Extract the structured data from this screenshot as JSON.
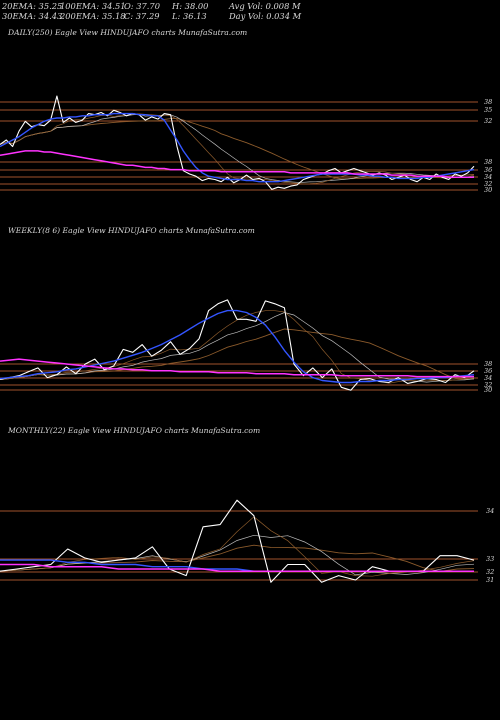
{
  "header": {
    "ema20": "20EMA: 35.25",
    "ema100": "100EMA: 34.51",
    "open": "O: 37.70",
    "high": "H: 38.00",
    "avgvol": "Avg Vol: 0.008  M",
    "ema30": "30EMA: 34.43",
    "ema200": "200EMA: 35.18",
    "close": "C: 37.29",
    "low": "L: 36.13",
    "dayvol": "Day Vol: 0.034  M"
  },
  "panels": {
    "daily": {
      "label": "DAILY(250) Eagle  View  HINDUJAFO charts MunafaSutra.com"
    },
    "weekly": {
      "label": "WEEKLY(8          6) Eagle  View  HINDUJAFO charts MunafaSutra.com"
    },
    "monthly": {
      "label": "MONTHLY(22) Eagle  View  HINDUJAFO charts MunafaSutra.com"
    }
  },
  "colors": {
    "background": "#000000",
    "price": "#ffffff",
    "ema_fast": "#3355ff",
    "ema_slow": "#ff33ff",
    "level_line": "#a0522d",
    "ma_brown": "#8b5a2b",
    "ma_grey": "#bbbbbb"
  },
  "chart_data": [
    {
      "type": "line",
      "name": "daily",
      "ylim": [
        29.5,
        38.6
      ],
      "level_ticks": [
        38,
        35,
        32,
        38,
        36,
        34,
        32,
        30
      ],
      "series": [
        {
          "role": "price",
          "values": [
            34.2,
            34.6,
            34.0,
            35.4,
            36.3,
            35.8,
            36.0,
            35.9,
            36.4,
            38.6,
            36.2,
            36.6,
            36.2,
            36.4,
            37.0,
            36.9,
            37.1,
            36.8,
            37.3,
            37.1,
            36.8,
            37.0,
            36.9,
            36.4,
            36.7,
            36.5,
            37.0,
            36.9,
            34.0,
            31.8,
            31.5,
            31.3,
            30.9,
            31.1,
            31.0,
            30.8,
            31.2,
            30.7,
            31.0,
            31.4,
            31.0,
            31.1,
            30.8,
            30.1,
            30.3,
            30.2,
            30.4,
            30.5,
            31.0,
            31.2,
            31.4,
            31.5,
            31.8,
            32.0,
            31.6,
            31.8,
            32.0,
            31.8,
            31.6,
            31.4,
            31.6,
            31.4,
            31.0,
            31.2,
            31.4,
            31.0,
            30.8,
            31.2,
            31.0,
            31.5,
            31.2,
            31.0,
            31.5,
            31.3,
            31.6,
            32.2
          ]
        },
        {
          "role": "ema-fast",
          "values": [
            34.0,
            34.3,
            34.6,
            34.9,
            35.3,
            35.7,
            36.0,
            36.3,
            36.5,
            36.6,
            36.6,
            36.7,
            36.7,
            36.8,
            36.8,
            36.9,
            36.9,
            36.9,
            37.0,
            37.0,
            37.0,
            37.0,
            36.9,
            36.9,
            36.8,
            36.8,
            36.4,
            35.5,
            34.6,
            33.6,
            32.8,
            32.1,
            31.6,
            31.3,
            31.2,
            31.1,
            31.0,
            31.0,
            31.0,
            30.9,
            30.9,
            30.8,
            30.8,
            30.8,
            30.8,
            30.9,
            31.0,
            31.1,
            31.2,
            31.3,
            31.4,
            31.5,
            31.5,
            31.5,
            31.5,
            31.5,
            31.5,
            31.4,
            31.4,
            31.3,
            31.3,
            31.2,
            31.2,
            31.1,
            31.1,
            31.1,
            31.1,
            31.2,
            31.2,
            31.3,
            31.4,
            31.5,
            31.6,
            31.7,
            31.8,
            31.9
          ]
        },
        {
          "role": "ema-slow",
          "values": [
            33.2,
            33.3,
            33.4,
            33.5,
            33.6,
            33.6,
            33.6,
            33.5,
            33.5,
            33.4,
            33.3,
            33.2,
            33.1,
            33.0,
            32.9,
            32.8,
            32.7,
            32.6,
            32.5,
            32.4,
            32.3,
            32.3,
            32.2,
            32.1,
            32.1,
            32.0,
            32.0,
            31.9,
            31.9,
            31.9,
            31.8,
            31.8,
            31.8,
            31.8,
            31.8,
            31.7,
            31.7,
            31.7,
            31.7,
            31.7,
            31.7,
            31.7,
            31.7,
            31.7,
            31.7,
            31.7,
            31.6,
            31.6,
            31.6,
            31.6,
            31.6,
            31.6,
            31.6,
            31.6,
            31.6,
            31.6,
            31.5,
            31.5,
            31.5,
            31.5,
            31.5,
            31.5,
            31.4,
            31.4,
            31.4,
            31.4,
            31.3,
            31.3,
            31.3,
            31.3,
            31.3,
            31.2,
            31.2,
            31.2,
            31.2,
            31.2
          ]
        }
      ]
    },
    {
      "type": "line",
      "name": "weekly",
      "ylim": [
        29.5,
        40.0
      ],
      "level_ticks": [
        38,
        36,
        34,
        32,
        30
      ],
      "series": [
        {
          "role": "price",
          "values": [
            31.4,
            31.6,
            31.8,
            32.2,
            32.6,
            31.6,
            31.9,
            32.7,
            32.0,
            33.0,
            33.5,
            32.4,
            32.8,
            34.5,
            34.2,
            35.0,
            33.8,
            34.4,
            35.3,
            34.0,
            34.6,
            35.6,
            38.5,
            39.2,
            39.6,
            37.6,
            37.6,
            37.4,
            39.5,
            39.2,
            38.8,
            33.0,
            31.8,
            32.6,
            31.6,
            32.5,
            30.6,
            30.3,
            31.4,
            31.5,
            31.2,
            31.1,
            31.6,
            31.0,
            31.2,
            31.5,
            31.4,
            31.1,
            31.9,
            31.6,
            32.3
          ]
        },
        {
          "role": "ema-fast",
          "values": [
            31.5,
            31.6,
            31.7,
            31.8,
            32.0,
            32.1,
            32.2,
            32.4,
            32.5,
            32.7,
            32.9,
            33.1,
            33.3,
            33.6,
            33.9,
            34.2,
            34.6,
            35.0,
            35.5,
            36.0,
            36.6,
            37.2,
            37.7,
            38.2,
            38.5,
            38.5,
            38.3,
            37.8,
            37.0,
            35.8,
            34.4,
            33.2,
            32.2,
            31.6,
            31.3,
            31.2,
            31.1,
            31.1,
            31.2,
            31.2,
            31.3,
            31.3,
            31.4,
            31.4,
            31.5,
            31.5,
            31.6,
            31.6,
            31.7,
            31.8,
            31.9
          ]
        },
        {
          "role": "ema-slow",
          "values": [
            33.3,
            33.4,
            33.5,
            33.4,
            33.3,
            33.2,
            33.1,
            33.0,
            32.9,
            32.8,
            32.7,
            32.6,
            32.5,
            32.5,
            32.4,
            32.4,
            32.3,
            32.3,
            32.3,
            32.2,
            32.2,
            32.2,
            32.2,
            32.1,
            32.1,
            32.1,
            32.1,
            32.0,
            32.0,
            32.0,
            32.0,
            31.9,
            31.9,
            31.9,
            31.9,
            31.9,
            31.8,
            31.8,
            31.8,
            31.8,
            31.8,
            31.8,
            31.8,
            31.8,
            31.7,
            31.7,
            31.7,
            31.7,
            31.7,
            31.7,
            31.7
          ]
        }
      ]
    },
    {
      "type": "line",
      "name": "monthly",
      "ylim": [
        30.3,
        34.9
      ],
      "level_ticks": [
        34,
        33,
        32,
        31
      ],
      "series": [
        {
          "role": "price",
          "values": [
            31.6,
            31.7,
            31.8,
            31.9,
            32.6,
            32.2,
            32.0,
            32.1,
            32.2,
            32.7,
            31.7,
            31.4,
            33.6,
            33.7,
            34.8,
            34.1,
            31.1,
            31.9,
            31.9,
            31.1,
            31.4,
            31.2,
            31.8,
            31.6,
            31.6,
            31.6,
            32.3,
            32.3,
            32.1
          ]
        },
        {
          "role": "ema-fast",
          "values": [
            32.1,
            32.1,
            32.1,
            32.1,
            32.0,
            32.0,
            31.9,
            31.9,
            31.9,
            31.8,
            31.8,
            31.8,
            31.7,
            31.7,
            31.7,
            31.6,
            31.6,
            31.6,
            31.6,
            31.6,
            31.6,
            31.6,
            31.6,
            31.6,
            31.6,
            31.6,
            31.6,
            31.6,
            31.6
          ]
        },
        {
          "role": "ema-slow",
          "values": [
            31.9,
            31.9,
            31.9,
            31.8,
            31.8,
            31.8,
            31.8,
            31.7,
            31.7,
            31.7,
            31.7,
            31.7,
            31.7,
            31.6,
            31.6,
            31.6,
            31.6,
            31.6,
            31.6,
            31.6,
            31.6,
            31.6,
            31.6,
            31.6,
            31.6,
            31.6,
            31.6,
            31.6,
            31.6
          ]
        }
      ]
    }
  ]
}
